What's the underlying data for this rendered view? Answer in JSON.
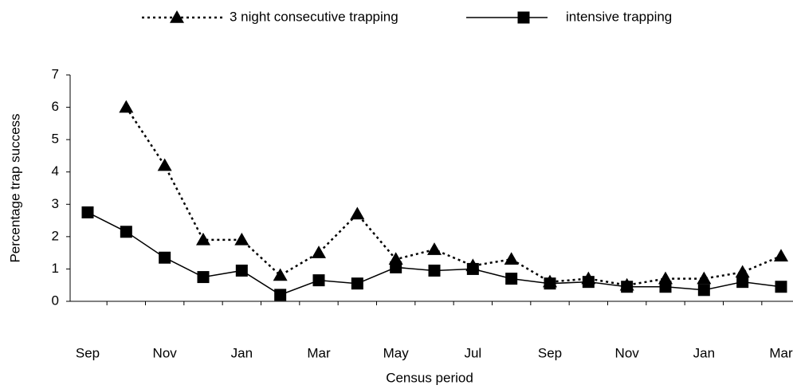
{
  "chart_data": {
    "type": "line",
    "x_label": "Census period",
    "y_label": "Percentage trap success",
    "categories": [
      "Sep",
      null,
      "Nov",
      null,
      "Jan",
      null,
      "Mar",
      null,
      "May",
      null,
      "Jul",
      null,
      "Sep",
      null,
      "Nov",
      null,
      "Jan",
      null,
      "Mar"
    ],
    "series": [
      {
        "name": "3 night consecutive trapping",
        "color": "#000000",
        "dash": true,
        "marker": "triangle",
        "values": [
          null,
          6.0,
          4.2,
          1.9,
          1.9,
          0.8,
          1.5,
          2.7,
          1.3,
          1.6,
          1.1,
          1.3,
          0.6,
          0.7,
          0.5,
          0.7,
          0.7,
          0.9,
          1.4
        ]
      },
      {
        "name": "intensive trapping",
        "color": "#000000",
        "dash": false,
        "marker": "square",
        "values": [
          2.75,
          2.15,
          1.35,
          0.75,
          0.95,
          0.2,
          0.65,
          0.55,
          1.05,
          0.95,
          1.0,
          0.7,
          0.55,
          0.6,
          0.45,
          0.45,
          0.35,
          0.6,
          0.45
        ]
      }
    ],
    "ylim": [
      0,
      7
    ],
    "yticks": [
      0,
      1,
      2,
      3,
      4,
      5,
      6,
      7
    ],
    "legend": "top"
  }
}
